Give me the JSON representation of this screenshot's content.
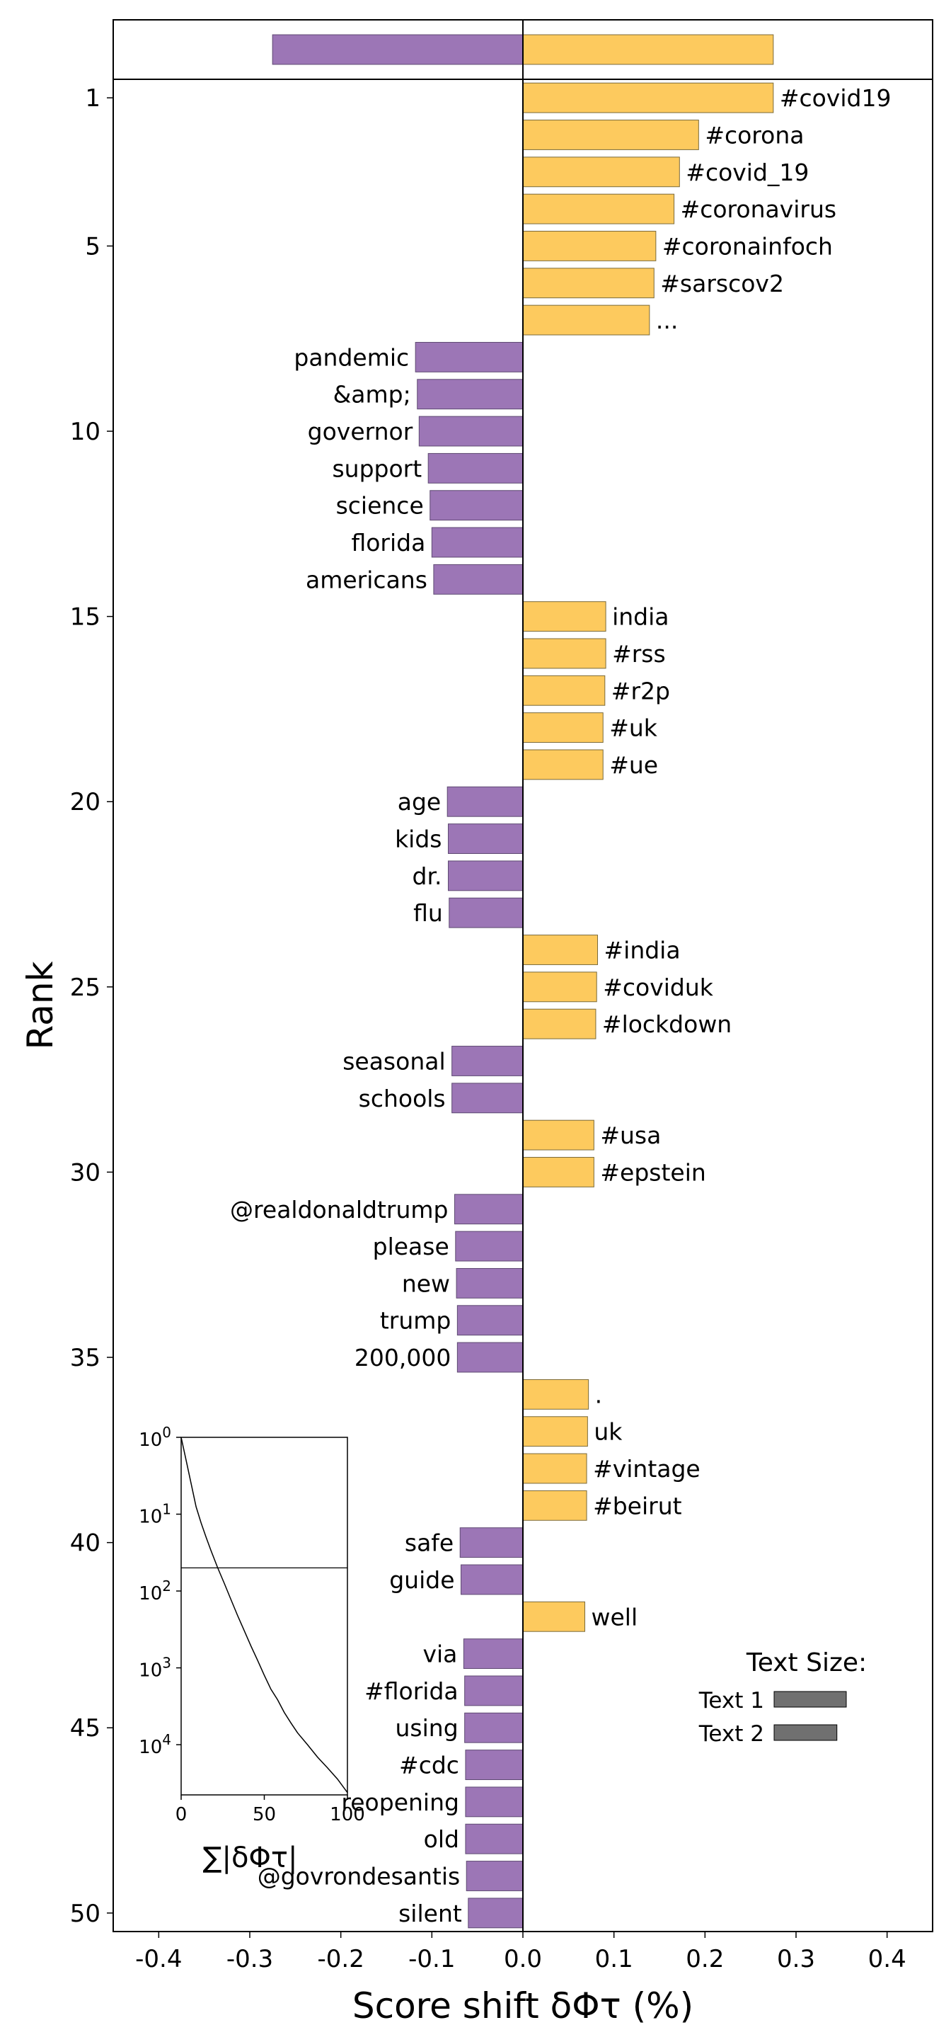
{
  "chart_data": {
    "type": "bar",
    "orientation": "horizontal",
    "xlabel": "Score shift δΦτ (%)",
    "ylabel": "Rank",
    "xlim": [
      -0.45,
      0.45
    ],
    "ylim": [
      0.5,
      50.5
    ],
    "x_ticks": [
      "-0.4",
      "-0.3",
      "-0.2",
      "-0.1",
      "0.0",
      "0.1",
      "0.2",
      "0.3",
      "0.4"
    ],
    "x_tick_values": [
      -0.4,
      -0.3,
      -0.2,
      -0.1,
      0.0,
      0.1,
      0.2,
      0.3,
      0.4
    ],
    "y_ticks": [
      "1",
      "5",
      "10",
      "15",
      "20",
      "25",
      "30",
      "35",
      "40",
      "45",
      "50"
    ],
    "y_tick_values": [
      1,
      5,
      10,
      15,
      20,
      25,
      30,
      35,
      40,
      45,
      50
    ],
    "colors": {
      "positive": "#fdca5e",
      "negative": "#9c76b6"
    },
    "total_bar": {
      "negative": -0.275,
      "positive": 0.275
    },
    "bars": [
      {
        "rank": 1,
        "word": "#covid19",
        "value": 0.275
      },
      {
        "rank": 2,
        "word": "#corona",
        "value": 0.193
      },
      {
        "rank": 3,
        "word": "#covid_19",
        "value": 0.172
      },
      {
        "rank": 4,
        "word": "#coronavirus",
        "value": 0.166
      },
      {
        "rank": 5,
        "word": "#coronainfoch",
        "value": 0.146
      },
      {
        "rank": 6,
        "word": "#sarscov2",
        "value": 0.144
      },
      {
        "rank": 7,
        "word": "...",
        "value": 0.139
      },
      {
        "rank": 8,
        "word": "pandemic",
        "value": -0.118
      },
      {
        "rank": 9,
        "word": "&amp;",
        "value": -0.116
      },
      {
        "rank": 10,
        "word": "governor",
        "value": -0.114
      },
      {
        "rank": 11,
        "word": "support",
        "value": -0.104
      },
      {
        "rank": 12,
        "word": "science",
        "value": -0.102
      },
      {
        "rank": 13,
        "word": "florida",
        "value": -0.1
      },
      {
        "rank": 14,
        "word": "americans",
        "value": -0.098
      },
      {
        "rank": 15,
        "word": "india",
        "value": 0.091
      },
      {
        "rank": 16,
        "word": "#rss",
        "value": 0.091
      },
      {
        "rank": 17,
        "word": "#r2p",
        "value": 0.09
      },
      {
        "rank": 18,
        "word": "#uk",
        "value": 0.088
      },
      {
        "rank": 19,
        "word": "#ue",
        "value": 0.088
      },
      {
        "rank": 20,
        "word": "age",
        "value": -0.083
      },
      {
        "rank": 21,
        "word": "kids",
        "value": -0.082
      },
      {
        "rank": 22,
        "word": "dr.",
        "value": -0.082
      },
      {
        "rank": 23,
        "word": "flu",
        "value": -0.081
      },
      {
        "rank": 24,
        "word": "#india",
        "value": 0.082
      },
      {
        "rank": 25,
        "word": "#coviduk",
        "value": 0.081
      },
      {
        "rank": 26,
        "word": "#lockdown",
        "value": 0.08
      },
      {
        "rank": 27,
        "word": "seasonal",
        "value": -0.078
      },
      {
        "rank": 28,
        "word": "schools",
        "value": -0.078
      },
      {
        "rank": 29,
        "word": "#usa",
        "value": 0.078
      },
      {
        "rank": 30,
        "word": "#epstein",
        "value": 0.078
      },
      {
        "rank": 31,
        "word": "@realdonaldtrump",
        "value": -0.075
      },
      {
        "rank": 32,
        "word": "please",
        "value": -0.074
      },
      {
        "rank": 33,
        "word": "new",
        "value": -0.073
      },
      {
        "rank": 34,
        "word": "trump",
        "value": -0.072
      },
      {
        "rank": 35,
        "word": "200,000",
        "value": -0.072
      },
      {
        "rank": 36,
        "word": ".",
        "value": 0.072
      },
      {
        "rank": 37,
        "word": "uk",
        "value": 0.071
      },
      {
        "rank": 38,
        "word": "#vintage",
        "value": 0.07
      },
      {
        "rank": 39,
        "word": "#beirut",
        "value": 0.07
      },
      {
        "rank": 40,
        "word": "safe",
        "value": -0.069
      },
      {
        "rank": 41,
        "word": "guide",
        "value": -0.068
      },
      {
        "rank": 42,
        "word": "well",
        "value": 0.068
      },
      {
        "rank": 43,
        "word": "via",
        "value": -0.065
      },
      {
        "rank": 44,
        "word": "#florida",
        "value": -0.064
      },
      {
        "rank": 45,
        "word": "using",
        "value": -0.064
      },
      {
        "rank": 46,
        "word": "#cdc",
        "value": -0.063
      },
      {
        "rank": 47,
        "word": "reopening",
        "value": -0.063
      },
      {
        "rank": 48,
        "word": "old",
        "value": -0.063
      },
      {
        "rank": 49,
        "word": "@govrondesantis",
        "value": -0.062
      },
      {
        "rank": 50,
        "word": "silent",
        "value": -0.06
      }
    ],
    "legend": {
      "title": "Text Size:",
      "placement": "lower-right",
      "entries": [
        {
          "label": "Text 1",
          "relative_size": 1.0
        },
        {
          "label": "Text 2",
          "relative_size": 0.87
        }
      ]
    },
    "inset": {
      "xlabel": "∑|δΦτ|",
      "x_ticks": [
        "0",
        "50",
        "100"
      ],
      "x_tick_values": [
        0,
        50,
        100
      ],
      "xlim": [
        0,
        100
      ],
      "y_ticks": [
        "10",
        "10",
        "10",
        "10",
        "10"
      ],
      "y_tick_exponents": [
        "0",
        "1",
        "2",
        "3",
        "4"
      ],
      "y_tick_values": [
        1,
        10,
        100,
        1000,
        10000
      ],
      "ylim": [
        1,
        45000
      ],
      "y_scale": "log",
      "cutoff_rank": 50,
      "curve": [
        [
          0,
          1
        ],
        [
          3,
          2
        ],
        [
          6,
          4
        ],
        [
          9,
          8
        ],
        [
          12,
          13
        ],
        [
          15,
          20
        ],
        [
          18,
          30
        ],
        [
          22,
          50
        ],
        [
          26,
          80
        ],
        [
          30,
          130
        ],
        [
          34,
          210
        ],
        [
          38,
          330
        ],
        [
          42,
          520
        ],
        [
          46,
          800
        ],
        [
          50,
          1250
        ],
        [
          54,
          1900
        ],
        [
          58,
          2600
        ],
        [
          62,
          3800
        ],
        [
          66,
          5200
        ],
        [
          70,
          7000
        ],
        [
          76,
          10000
        ],
        [
          82,
          14500
        ],
        [
          88,
          20000
        ],
        [
          94,
          28000
        ],
        [
          100,
          42000
        ]
      ]
    }
  }
}
